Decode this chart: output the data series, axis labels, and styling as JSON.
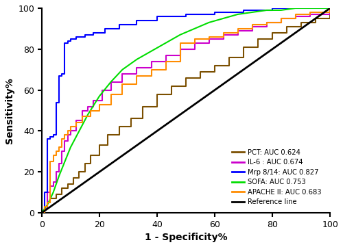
{
  "title": "",
  "xlabel": "1 - Specificity%",
  "ylabel": "Sensitivity%",
  "xlim": [
    0,
    100
  ],
  "ylim": [
    0,
    100
  ],
  "xticks": [
    0,
    20,
    40,
    60,
    80,
    100
  ],
  "yticks": [
    0,
    20,
    40,
    60,
    80,
    100
  ],
  "reference_line_color": "#000000",
  "curves": [
    {
      "label": "PCT: AUC 0.624",
      "color": "#7B4F00",
      "auc": 0.624,
      "type": "step",
      "x": [
        0,
        1,
        2,
        3,
        5,
        7,
        9,
        11,
        13,
        15,
        17,
        20,
        23,
        27,
        31,
        35,
        40,
        45,
        50,
        55,
        60,
        65,
        70,
        75,
        80,
        85,
        90,
        95,
        100
      ],
      "y": [
        0,
        3,
        5,
        7,
        9,
        12,
        14,
        17,
        20,
        24,
        28,
        33,
        38,
        42,
        46,
        52,
        58,
        62,
        66,
        69,
        72,
        76,
        81,
        85,
        88,
        91,
        93,
        95,
        100
      ]
    },
    {
      "label": "IL-6 : AUC 0.674",
      "color": "#CC00CC",
      "auc": 0.674,
      "type": "step",
      "x": [
        0,
        1,
        2,
        3,
        4,
        5,
        6,
        7,
        8,
        9,
        10,
        12,
        14,
        16,
        18,
        21,
        24,
        28,
        33,
        38,
        43,
        48,
        53,
        58,
        63,
        68,
        73,
        78,
        83,
        88,
        93,
        100
      ],
      "y": [
        0,
        2,
        10,
        13,
        15,
        20,
        24,
        30,
        35,
        38,
        40,
        45,
        50,
        52,
        55,
        60,
        64,
        68,
        71,
        74,
        77,
        80,
        83,
        85,
        87,
        89,
        91,
        93,
        95,
        96,
        97,
        100
      ]
    },
    {
      "label": "Mrp 8/14: AUC 0.827",
      "color": "#0000FF",
      "auc": 0.827,
      "type": "step",
      "x": [
        0,
        1,
        2,
        3,
        4,
        5,
        6,
        7,
        8,
        9,
        10,
        12,
        15,
        18,
        22,
        27,
        33,
        40,
        50,
        60,
        70,
        80,
        90,
        100
      ],
      "y": [
        0,
        10,
        36,
        37,
        38,
        54,
        67,
        68,
        83,
        84,
        85,
        86,
        87,
        88,
        90,
        92,
        94,
        96,
        97,
        98,
        99,
        100,
        100,
        100
      ]
    },
    {
      "label": "SOFA: AUC 0.753",
      "color": "#00DD00",
      "auc": 0.753,
      "type": "smooth",
      "x": [
        0,
        2,
        4,
        6,
        8,
        10,
        13,
        16,
        20,
        24,
        28,
        33,
        38,
        43,
        48,
        53,
        58,
        63,
        68,
        73,
        78,
        83,
        88,
        93,
        100
      ],
      "y": [
        0,
        4,
        10,
        18,
        25,
        32,
        40,
        48,
        57,
        64,
        70,
        75,
        79,
        83,
        87,
        90,
        93,
        95,
        97,
        98,
        99,
        99,
        100,
        100,
        100
      ]
    },
    {
      "label": "APACHE II: AUC 0.683",
      "color": "#FF8C00",
      "auc": 0.683,
      "type": "step",
      "x": [
        0,
        1,
        2,
        3,
        4,
        5,
        6,
        7,
        8,
        9,
        10,
        12,
        14,
        17,
        20,
        24,
        28,
        33,
        38,
        43,
        48,
        53,
        58,
        63,
        68,
        73,
        78,
        83,
        88,
        93,
        100
      ],
      "y": [
        0,
        3,
        5,
        25,
        28,
        30,
        32,
        36,
        38,
        40,
        42,
        44,
        47,
        50,
        53,
        58,
        63,
        67,
        70,
        74,
        83,
        85,
        86,
        88,
        90,
        92,
        93,
        95,
        97,
        98,
        100
      ]
    }
  ],
  "legend_labels": [
    "PCT: AUC 0.624",
    "IL-6 : AUC 0.674",
    "Mrp 8/14: AUC 0.827",
    "SOFA: AUC 0.753",
    "APACHE II: AUC 0.683",
    "Reference line"
  ],
  "legend_colors": [
    "#7B4F00",
    "#CC00CC",
    "#0000FF",
    "#00DD00",
    "#FF8C00",
    "#000000"
  ]
}
